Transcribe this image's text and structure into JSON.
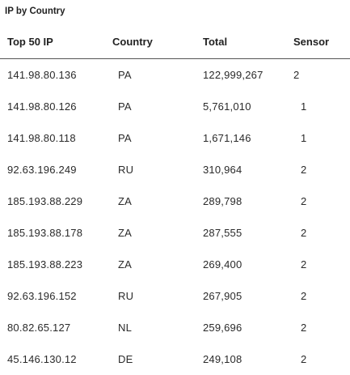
{
  "panel": {
    "title": "IP by Country"
  },
  "table": {
    "headers": [
      "Top 50 IP",
      "Country",
      "Total",
      "Sensor"
    ],
    "rows": [
      [
        "141.98.80.136",
        "PA",
        "122,999,267",
        "2"
      ],
      [
        "141.98.80.126",
        "PA",
        "5,761,010",
        "1"
      ],
      [
        "141.98.80.118",
        "PA",
        "1,671,146",
        "1"
      ],
      [
        "92.63.196.249",
        "RU",
        "310,964",
        "2"
      ],
      [
        "185.193.88.229",
        "ZA",
        "289,798",
        "2"
      ],
      [
        "185.193.88.178",
        "ZA",
        "287,555",
        "2"
      ],
      [
        "185.193.88.223",
        "ZA",
        "269,400",
        "2"
      ],
      [
        "92.63.196.152",
        "RU",
        "267,905",
        "2"
      ],
      [
        "80.82.65.127",
        "NL",
        "259,696",
        "2"
      ],
      [
        "45.146.130.12",
        "DE",
        "249,108",
        "2"
      ]
    ]
  }
}
